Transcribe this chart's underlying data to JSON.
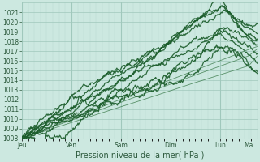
{
  "title": "",
  "xlabel": "Pression niveau de la mer( hPa )",
  "background_color": "#cce8e0",
  "plot_bg_color": "#cce8e0",
  "grid_color_major": "#a0c8bc",
  "grid_color_minor": "#b8d8d0",
  "line_color_dark": "#1a5c2a",
  "line_color_thin": "#3a7a4a",
  "ylim": [
    1008,
    1022
  ],
  "yticks": [
    1008,
    1009,
    1010,
    1011,
    1012,
    1013,
    1014,
    1015,
    1016,
    1017,
    1018,
    1019,
    1020,
    1021
  ],
  "day_labels": [
    "Jeu",
    "Ven",
    "Sam",
    "Dim",
    "Lun",
    "Ma"
  ],
  "day_positions": [
    0,
    24,
    48,
    72,
    96,
    110
  ],
  "xlim": [
    0,
    114
  ],
  "text_color": "#2d5a3d",
  "xlabel_fontsize": 7,
  "tick_fontsize": 5.5
}
